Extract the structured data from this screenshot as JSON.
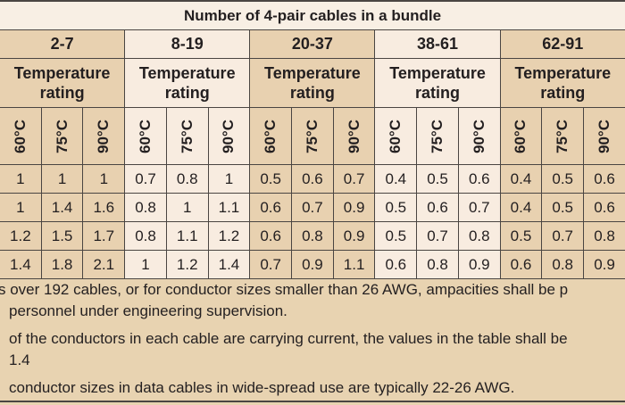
{
  "title": "Number of 4-pair cables in a bundle",
  "groups": [
    {
      "label": "2-7",
      "sub": "Temperature rating",
      "rows": [
        [
          "1",
          "1",
          "1"
        ],
        [
          "1",
          "1.4",
          "1.6"
        ],
        [
          "1.2",
          "1.5",
          "1.7"
        ],
        [
          "1.4",
          "1.8",
          "2.1"
        ]
      ]
    },
    {
      "label": "8-19",
      "sub": "Temperature rating",
      "rows": [
        [
          "0.7",
          "0.8",
          "1"
        ],
        [
          "0.8",
          "1",
          "1.1"
        ],
        [
          "0.8",
          "1.1",
          "1.2"
        ],
        [
          "1",
          "1.2",
          "1.4"
        ]
      ]
    },
    {
      "label": "20-37",
      "sub": "Temperature rating",
      "rows": [
        [
          "0.5",
          "0.6",
          "0.7"
        ],
        [
          "0.6",
          "0.7",
          "0.9"
        ],
        [
          "0.6",
          "0.8",
          "0.9"
        ],
        [
          "0.7",
          "0.9",
          "1.1"
        ]
      ]
    },
    {
      "label": "38-61",
      "sub": "Temperature rating",
      "rows": [
        [
          "0.4",
          "0.5",
          "0.6"
        ],
        [
          "0.5",
          "0.6",
          "0.7"
        ],
        [
          "0.5",
          "0.7",
          "0.8"
        ],
        [
          "0.6",
          "0.8",
          "0.9"
        ]
      ]
    },
    {
      "label": "62-91",
      "sub": "Temperature rating",
      "rows": [
        [
          "0.4",
          "0.5",
          "0.6"
        ],
        [
          "0.4",
          "0.5",
          "0.6"
        ],
        [
          "0.5",
          "0.7",
          "0.8"
        ],
        [
          "0.6",
          "0.8",
          "0.9"
        ]
      ]
    }
  ],
  "temps": [
    "60°C",
    "75°C",
    "90°C"
  ],
  "notes": [
    [
      "s over 192 cables, or for conductor sizes smaller than 26 AWG, ampacities shall be p",
      "personnel under engineering supervision."
    ],
    [
      "of the conductors in each cable are carrying current, the values in the table shall be",
      "1.4"
    ],
    [
      "conductor sizes in data cables in wide-spread use are typically 22-26 AWG."
    ]
  ]
}
